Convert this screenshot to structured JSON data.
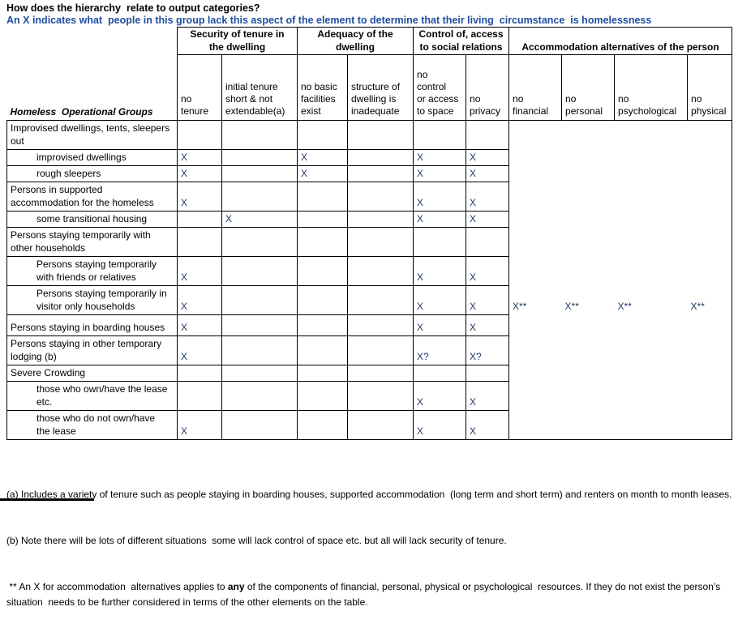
{
  "title": "How does the hierarchy  relate to output categories?",
  "subtitle": "An X indicates what  people in this group lack this aspect of the element to determine that their living  circumstance  is homelessness",
  "colors": {
    "subtitle_blue": "#1f4ea1",
    "mark_navy": "#1f3864"
  },
  "table": {
    "corner_label": "Homeless  Operational Groups",
    "groups": [
      {
        "label": "Security of tenure in\nthe dwelling"
      },
      {
        "label": "Adequacy of the\ndwelling"
      },
      {
        "label": "Control of, access\nto social relations"
      },
      {
        "label": "Accommodation alternatives of the person"
      }
    ],
    "columns": [
      "no\ntenure",
      "initial tenure\nshort & not\nextendable(a)",
      "no basic\nfacilities\nexist",
      "structure of\ndwelling is\ninadequate",
      "no\ncontrol\nor access\nto space",
      "no\nprivacy",
      "no\nfinancial",
      "no\npersonal",
      "no\npsychological",
      "no\nphysical"
    ],
    "rows": [
      {
        "label": "Improvised dwellings, tents, sleepers\nout",
        "indent": false,
        "cells": [
          "",
          "",
          "",
          "",
          "",
          "",
          "",
          "",
          "",
          ""
        ]
      },
      {
        "label": "improvised dwellings",
        "indent": true,
        "cells": [
          "X",
          "",
          "X",
          "",
          "X",
          "X",
          "",
          "",
          "",
          ""
        ]
      },
      {
        "label": "rough sleepers",
        "indent": true,
        "cells": [
          "X",
          "",
          "X",
          "",
          "X",
          "X",
          "",
          "",
          "",
          ""
        ]
      },
      {
        "label": "Persons in supported\naccommodation for the homeless",
        "indent": false,
        "cells": [
          "X",
          "",
          "",
          "",
          "X",
          "X",
          "",
          "",
          "",
          ""
        ]
      },
      {
        "label": "some transitional housing",
        "indent": true,
        "cells": [
          "",
          "X",
          "",
          "",
          "X",
          "X",
          "",
          "",
          "",
          ""
        ]
      },
      {
        "label": "Persons staying temporarily with\nother households",
        "indent": false,
        "cells": [
          "",
          "",
          "",
          "",
          "",
          "",
          "",
          "",
          "",
          ""
        ]
      },
      {
        "label": "Persons staying temporarily\nwith friends or relatives",
        "indent": true,
        "cells": [
          "X",
          "",
          "",
          "",
          "X",
          "X",
          "",
          "",
          "",
          ""
        ]
      },
      {
        "label": "Persons staying temporarily in\nvisitor only households",
        "indent": true,
        "cells": [
          "X",
          "",
          "",
          "",
          "X",
          "X",
          "X**",
          "X**",
          "X**",
          "X**"
        ]
      },
      {
        "label": "Persons staying in boarding houses",
        "indent": false,
        "cells": [
          "X",
          "",
          "",
          "",
          "X",
          "X",
          "",
          "",
          "",
          ""
        ]
      },
      {
        "label": "Persons staying in other temporary\nlodging (b)",
        "indent": false,
        "cells": [
          "X",
          "",
          "",
          "",
          "X?",
          "X?",
          "",
          "",
          "",
          ""
        ]
      },
      {
        "label": "Severe Crowding",
        "indent": false,
        "cells": [
          "",
          "",
          "",
          "",
          "",
          "",
          "",
          "",
          "",
          ""
        ]
      },
      {
        "label": "those who own/have the lease\netc.",
        "indent": true,
        "cells": [
          "",
          "",
          "",
          "",
          "X",
          "X",
          "",
          "",
          "",
          ""
        ]
      },
      {
        "label": "those who do not own/have\nthe lease",
        "indent": true,
        "cells": [
          "X",
          "",
          "",
          "",
          "X",
          "X",
          "",
          "",
          "",
          ""
        ]
      }
    ]
  },
  "notes": {
    "a": "(a) Includes a variety of tenure such as people staying in boarding houses, supported accommodation  (long term and short term) and renters on month to month leases.",
    "b": "(b) Note there will be lots of different situations  some will lack control of space etc. but all will lack security of tenure.",
    "star_prefix": " ** An X for accommodation  alternatives applies to ",
    "star_bold": "any",
    "star_suffix": " of the components of financial, personal, physical or psychological  resources. If they do not exist the person’s situation  needs to be further considered in terms of the other elements on the table."
  }
}
